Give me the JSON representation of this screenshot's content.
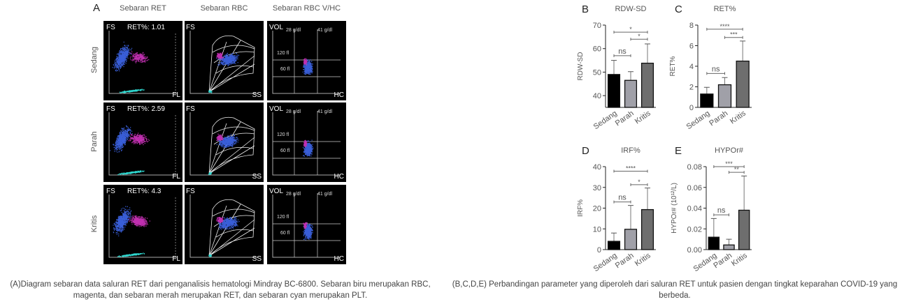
{
  "panel_a": {
    "letter": "A",
    "columns": [
      "Sebaran RET",
      "Sebaran RBC",
      "Sebaran RBC V/HC"
    ],
    "rows": [
      {
        "label": "Sedang",
        "ret": "RET%: 1.01"
      },
      {
        "label": "Parah",
        "ret": "RET%: 2.59"
      },
      {
        "label": "Kritis",
        "ret": "RET%: 4.3"
      }
    ],
    "axes": {
      "fs": "FS",
      "fl": "FL",
      "ss": "SS",
      "vol": "VOL",
      "hc": "HC",
      "g28": "28 g/dl",
      "g41": "41 g/dl",
      "f120": "120 fl",
      "f60": "60 fl"
    },
    "colors": {
      "rbc": "#3a5fd8",
      "ret": "#c030b0",
      "plt": "#30d8d0",
      "bg": "#000000"
    }
  },
  "chart_data": [
    {
      "letter": "B",
      "type": "bar",
      "title": "RDW-SD",
      "ylabel": "RDW-SD",
      "categories": [
        "Sedang",
        "Parah",
        "Kritis"
      ],
      "values": [
        49,
        46.5,
        53.8
      ],
      "error_upper": [
        55,
        50.2,
        62
      ],
      "ylim": [
        35,
        70
      ],
      "yticks": [
        40,
        50,
        60,
        70
      ],
      "ytick_labels": [
        "40",
        "50",
        "60",
        "70"
      ],
      "significance": [
        {
          "from": 0,
          "to": 1,
          "label": "ns",
          "y": 57
        },
        {
          "from": 1,
          "to": 2,
          "label": "*",
          "y": 64
        },
        {
          "from": 0,
          "to": 2,
          "label": "*",
          "y": 67
        }
      ]
    },
    {
      "letter": "C",
      "type": "bar",
      "title": "RET%",
      "ylabel": "RET%",
      "categories": [
        "Sedang",
        "Parah",
        "Kritis"
      ],
      "values": [
        1.3,
        2.2,
        4.5
      ],
      "error_upper": [
        1.95,
        2.9,
        6.45
      ],
      "ylim": [
        0,
        8
      ],
      "yticks": [
        0,
        2,
        4,
        6,
        8
      ],
      "ytick_labels": [
        "0",
        "2",
        "4",
        "6",
        "8"
      ],
      "significance": [
        {
          "from": 0,
          "to": 1,
          "label": "ns",
          "y": 3.3
        },
        {
          "from": 1,
          "to": 2,
          "label": "***",
          "y": 6.8
        },
        {
          "from": 0,
          "to": 2,
          "label": "****",
          "y": 7.6
        }
      ]
    },
    {
      "letter": "D",
      "type": "bar",
      "title": "IRF%",
      "ylabel": "IRF%",
      "categories": [
        "Sedang",
        "Parah",
        "Kritis"
      ],
      "values": [
        4,
        9.8,
        19.3
      ],
      "error_upper": [
        8,
        21.3,
        29.7
      ],
      "ylim": [
        0,
        40
      ],
      "yticks": [
        0,
        10,
        20,
        30,
        40
      ],
      "ytick_labels": [
        "0",
        "10",
        "20",
        "30",
        "40"
      ],
      "significance": [
        {
          "from": 0,
          "to": 1,
          "label": "ns",
          "y": 23
        },
        {
          "from": 1,
          "to": 2,
          "label": "*",
          "y": 31.3
        },
        {
          "from": 0,
          "to": 2,
          "label": "****",
          "y": 37.8
        }
      ]
    },
    {
      "letter": "E",
      "type": "bar",
      "title": "HYPOr#",
      "ylabel": "HYPOr# (10¹²/L)",
      "categories": [
        "Sedang",
        "Parah",
        "Kritis"
      ],
      "values": [
        0.012,
        0.0045,
        0.038
      ],
      "error_upper": [
        0.03,
        0.01,
        0.071
      ],
      "ylim": [
        0,
        0.08
      ],
      "yticks": [
        0,
        0.02,
        0.04,
        0.06,
        0.08
      ],
      "ytick_labels": [
        "0.00",
        "0.02",
        "0.04",
        "0.06",
        "0.08"
      ],
      "significance": [
        {
          "from": 0,
          "to": 1,
          "label": "ns",
          "y": 0.0335
        },
        {
          "from": 1,
          "to": 2,
          "label": "**",
          "y": 0.0745
        },
        {
          "from": 0,
          "to": 2,
          "label": "***",
          "y": 0.08
        }
      ]
    }
  ],
  "bar_colors": [
    "#000000",
    "#a0a0a8",
    "#6e6e6e"
  ],
  "captions": {
    "a": "(A)Diagram sebaran data saluran RET dari penganalisis hematologi Mindray BC-6800. Sebaran biru merupakan RBC, magenta, dan sebaran merah merupakan RET, dan sebaran cyan merupakan PLT.",
    "bcde": "(B,C,D,E) Perbandingan parameter yang diperoleh dari saluran RET untuk pasien dengan tingkat keparahan COVID-19 yang berbeda."
  }
}
